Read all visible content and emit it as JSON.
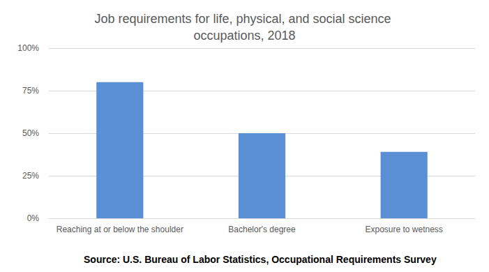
{
  "chart_data": {
    "type": "bar",
    "title": "Job requirements for life, physical, and social science occupations, 2018",
    "source": "Source: U.S. Bureau of Labor Statistics, Occupational Requirements Survey",
    "categories": [
      "Reaching at or below the shoulder",
      "Bachelor's degree",
      "Exposure to wetness"
    ],
    "values": [
      80,
      50,
      39
    ],
    "color": "#5b8fd5",
    "ylim": [
      0,
      100
    ],
    "yticks": [
      {
        "value": 0,
        "label": "0%"
      },
      {
        "value": 25,
        "label": "25%"
      },
      {
        "value": 50,
        "label": "50%"
      },
      {
        "value": 75,
        "label": "75%"
      },
      {
        "value": 100,
        "label": "100%"
      }
    ],
    "grid": true
  }
}
